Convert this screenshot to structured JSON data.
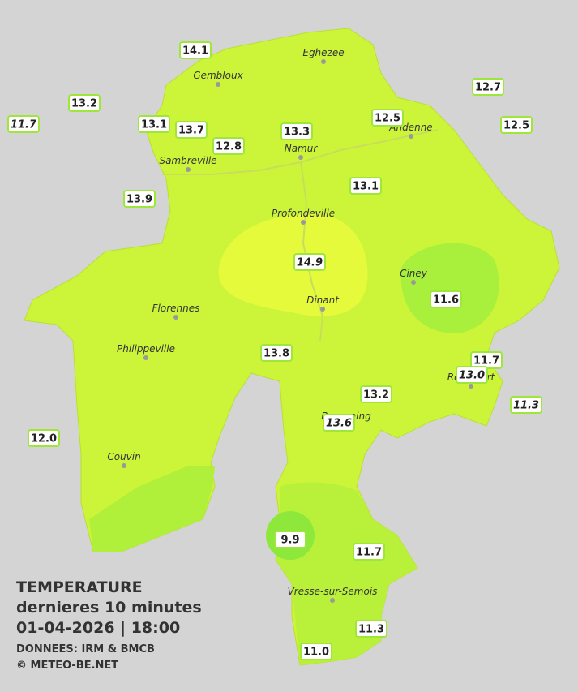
{
  "legend": {
    "title": "TEMPERATURE",
    "subtitle": "dernieres 10 minutes",
    "datetime": "01-04-2026  |  18:00",
    "source": "DONNEES: IRM & BMCB",
    "credit": "© METEO-BE.NET"
  },
  "cities": [
    "Eghezee",
    "Gembloux",
    "Andenne",
    "Namur",
    "Sambreville",
    "Profondeville",
    "Ciney",
    "Dinant",
    "Florennes",
    "Philippeville",
    "Rochefort",
    "Beauraing",
    "Couvin",
    "Vresse-sur-Semois"
  ],
  "stations": [
    {
      "value": "14.1",
      "italic": false
    },
    {
      "value": "13.2",
      "italic": false
    },
    {
      "value": "11.7",
      "italic": true
    },
    {
      "value": "13.1",
      "italic": false
    },
    {
      "value": "13.7",
      "italic": false
    },
    {
      "value": "12.8",
      "italic": false
    },
    {
      "value": "13.3",
      "italic": false
    },
    {
      "value": "12.5",
      "italic": false
    },
    {
      "value": "12.7",
      "italic": false
    },
    {
      "value": "12.5",
      "italic": false
    },
    {
      "value": "13.9",
      "italic": false
    },
    {
      "value": "13.1",
      "italic": false
    },
    {
      "value": "14.9",
      "italic": true
    },
    {
      "value": "11.6",
      "italic": false
    },
    {
      "value": "13.8",
      "italic": false
    },
    {
      "value": "11.7",
      "italic": false
    },
    {
      "value": "13.0",
      "italic": true
    },
    {
      "value": "13.2",
      "italic": false
    },
    {
      "value": "11.3",
      "italic": true
    },
    {
      "value": "13.6",
      "italic": true
    },
    {
      "value": "12.0",
      "italic": false
    },
    {
      "value": "9.9",
      "italic": false
    },
    {
      "value": "11.7",
      "italic": false
    },
    {
      "value": "11.3",
      "italic": false
    },
    {
      "value": "11.0",
      "italic": false
    }
  ]
}
